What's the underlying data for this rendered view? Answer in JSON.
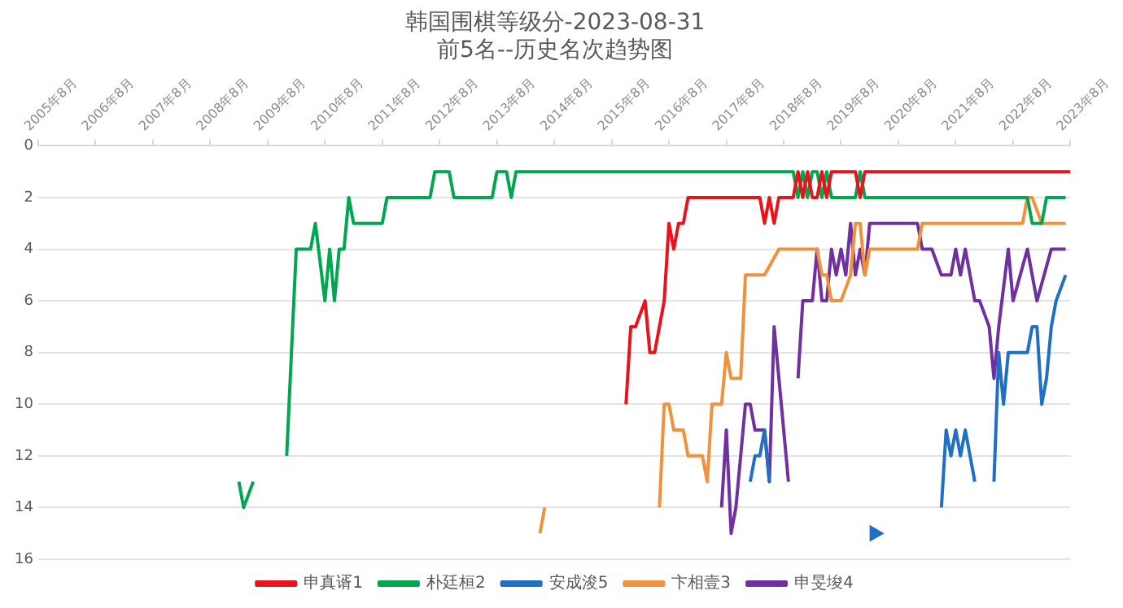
{
  "chart_data": {
    "type": "line",
    "title": "韩国围棋等级分-2023-08-31",
    "subtitle": "前5名--历史名次趋势图",
    "xlim": [
      "2005-08",
      "2023-08"
    ],
    "xticks": [
      {
        "value": "2005-08",
        "label": "2005年8月"
      },
      {
        "value": "2006-08",
        "label": "2006年8月"
      },
      {
        "value": "2007-08",
        "label": "2007年8月"
      },
      {
        "value": "2008-08",
        "label": "2008年8月"
      },
      {
        "value": "2009-08",
        "label": "2009年8月"
      },
      {
        "value": "2010-08",
        "label": "2010年8月"
      },
      {
        "value": "2011-08",
        "label": "2011年8月"
      },
      {
        "value": "2012-08",
        "label": "2012年8月"
      },
      {
        "value": "2013-08",
        "label": "2013年8月"
      },
      {
        "value": "2014-08",
        "label": "2014年8月"
      },
      {
        "value": "2015-08",
        "label": "2015年8月"
      },
      {
        "value": "2016-08",
        "label": "2016年8月"
      },
      {
        "value": "2017-08",
        "label": "2017年8月"
      },
      {
        "value": "2018-08",
        "label": "2018年8月"
      },
      {
        "value": "2019-08",
        "label": "2019年8月"
      },
      {
        "value": "2020-08",
        "label": "2020年8月"
      },
      {
        "value": "2021-08",
        "label": "2021年8月"
      },
      {
        "value": "2022-08",
        "label": "2022年8月"
      },
      {
        "value": "2023-08",
        "label": "2023年8月"
      }
    ],
    "ylim": [
      16,
      0
    ],
    "yticks": [
      0,
      2,
      4,
      6,
      8,
      10,
      12,
      14,
      16
    ],
    "grid": "y",
    "legend": "bottom",
    "line_style": "solid",
    "series": [
      {
        "name": "申真谞1",
        "color": "#e8141c",
        "x": [
          "2015-11",
          "2015-12",
          "2016-01",
          "2016-03",
          "2016-04",
          "2016-05",
          "2016-07",
          "2016-08",
          "2016-09",
          "2016-10",
          "2016-11",
          "2016-12",
          "2018-03",
          "2018-04",
          "2018-05",
          "2018-06",
          "2018-07",
          "2018-10",
          "2018-11",
          "2018-12",
          "2019-01",
          "2019-02",
          "2019-03",
          "2019-04",
          "2019-05",
          "2019-06",
          "2019-11",
          "2019-12",
          "2020-01",
          "2023-08"
        ],
        "values": [
          10,
          7,
          7,
          6,
          8,
          8,
          6,
          3,
          4,
          3,
          3,
          2,
          2,
          3,
          2,
          3,
          2,
          2,
          1,
          2,
          1,
          2,
          2,
          1,
          2,
          1,
          1,
          2,
          1,
          1
        ]
      },
      {
        "name": "朴廷桓2",
        "color": "#00a650",
        "x": [
          "2009-02",
          "2009-03",
          "2009-05",
          "2009-06",
          "2009-12",
          "2010-02",
          "2010-05",
          "2010-06",
          "2010-08",
          "2010-09",
          "2010-10",
          "2010-11",
          "2010-12",
          "2011-01",
          "2011-02",
          "2011-08",
          "2011-09",
          "2012-06",
          "2012-07",
          "2012-10",
          "2012-11",
          "2013-07",
          "2013-08",
          "2013-10",
          "2013-11",
          "2013-12",
          "2018-10",
          "2018-11",
          "2018-12",
          "2019-01",
          "2019-02",
          "2019-03",
          "2019-04",
          "2019-05",
          "2019-06",
          "2019-11",
          "2019-12",
          "2020-01",
          "2022-11",
          "2022-12",
          "2023-02",
          "2023-03",
          "2023-07"
        ],
        "values": [
          13,
          14,
          13,
          null,
          12,
          4,
          4,
          3,
          6,
          4,
          6,
          4,
          4,
          2,
          3,
          3,
          2,
          2,
          1,
          1,
          2,
          2,
          1,
          1,
          2,
          1,
          1,
          2,
          1,
          2,
          1,
          1,
          2,
          1,
          2,
          2,
          1,
          2,
          2,
          3,
          3,
          2,
          2
        ]
      },
      {
        "name": "安成浚5",
        "color": "#1f6fc4",
        "x": [
          "2018-01",
          "2018-02",
          "2018-03",
          "2018-04",
          "2018-05",
          "2018-06",
          "2020-03",
          "2020-04",
          "2021-05",
          "2021-06",
          "2021-07",
          "2021-08",
          "2021-09",
          "2021-10",
          "2021-11",
          "2021-12",
          "2022-01",
          "2022-04",
          "2022-05",
          "2022-06",
          "2022-07",
          "2022-11",
          "2022-12",
          "2023-01",
          "2023-02",
          "2023-03",
          "2023-04",
          "2023-05",
          "2023-07"
        ],
        "values": [
          13,
          12,
          12,
          11,
          13,
          null,
          15,
          null,
          14,
          11,
          12,
          11,
          12,
          11,
          12,
          13,
          null,
          13,
          8,
          10,
          8,
          8,
          7,
          7,
          10,
          9,
          7,
          6,
          5
        ]
      },
      {
        "name": "卞相壹3",
        "color": "#f0913b",
        "x": [
          "2014-05",
          "2014-06",
          "2014-07",
          "2016-06",
          "2016-07",
          "2016-08",
          "2016-09",
          "2016-11",
          "2016-12",
          "2017-03",
          "2017-04",
          "2017-05",
          "2017-07",
          "2017-08",
          "2017-09",
          "2017-11",
          "2017-12",
          "2018-04",
          "2018-07",
          "2019-03",
          "2019-04",
          "2019-05",
          "2019-06",
          "2019-08",
          "2019-10",
          "2019-11",
          "2019-12",
          "2020-01",
          "2020-02",
          "2020-12",
          "2021-01",
          "2022-10",
          "2022-11",
          "2022-12",
          "2023-02",
          "2023-07"
        ],
        "values": [
          15,
          14,
          null,
          14,
          10,
          10,
          11,
          11,
          12,
          12,
          13,
          10,
          10,
          8,
          9,
          9,
          5,
          5,
          4,
          4,
          5,
          5,
          6,
          6,
          5,
          3,
          3,
          5,
          4,
          4,
          3,
          3,
          2,
          2,
          3,
          3
        ]
      },
      {
        "name": "申旻埈4",
        "color": "#7030a0",
        "x": [
          "2017-07",
          "2017-08",
          "2017-09",
          "2017-10",
          "2017-12",
          "2018-01",
          "2018-02",
          "2018-04",
          "2018-05",
          "2018-06",
          "2018-07",
          "2018-09",
          "2018-10",
          "2018-11",
          "2018-12",
          "2019-02",
          "2019-03",
          "2019-04",
          "2019-05",
          "2019-06",
          "2019-07",
          "2019-08",
          "2019-09",
          "2019-10",
          "2019-11",
          "2019-12",
          "2020-01",
          "2020-02",
          "2020-12",
          "2021-01",
          "2021-03",
          "2021-05",
          "2021-07",
          "2021-08",
          "2021-09",
          "2021-10",
          "2021-11",
          "2021-12",
          "2022-01",
          "2022-03",
          "2022-04",
          "2022-05",
          "2022-07",
          "2022-08",
          "2022-11",
          "2022-12",
          "2023-01",
          "2023-04",
          "2023-07"
        ],
        "values": [
          14,
          11,
          15,
          14,
          10,
          10,
          11,
          11,
          13,
          7,
          9,
          13,
          null,
          9,
          6,
          6,
          4,
          6,
          6,
          4,
          5,
          4,
          5,
          3,
          5,
          4,
          5,
          3,
          3,
          4,
          4,
          5,
          5,
          4,
          5,
          4,
          5,
          6,
          6,
          7,
          9,
          7,
          4,
          6,
          4,
          5,
          6,
          4,
          4
        ]
      }
    ]
  }
}
